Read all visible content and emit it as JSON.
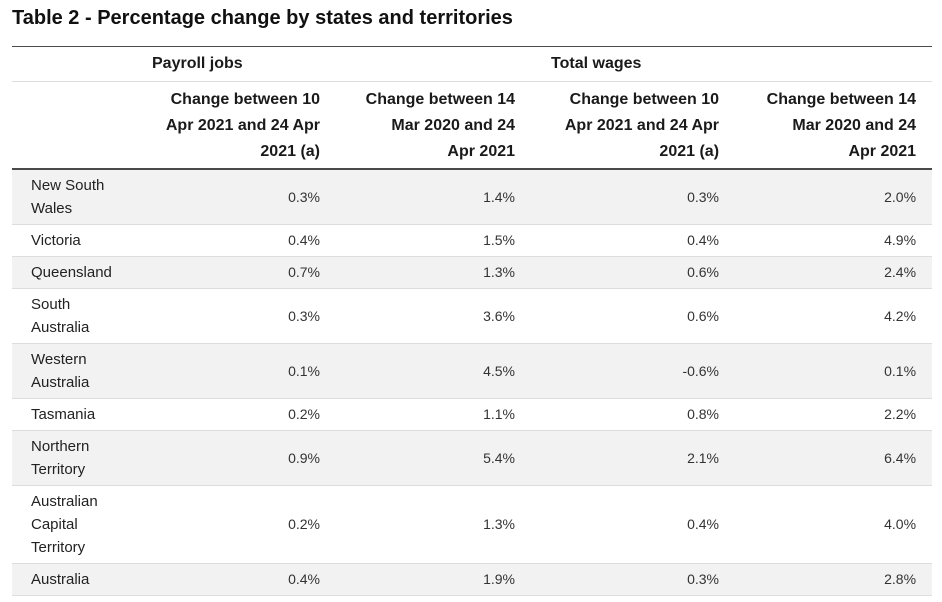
{
  "title": "Table 2 - Percentage change by states and territories",
  "table": {
    "group_headers": {
      "payroll": "Payroll jobs",
      "wages": "Total wages"
    },
    "column_headers": [
      "Change between 10 Apr 2021 and 24 Apr 2021 (a)",
      "Change between 14 Mar 2020 and 24 Apr 2021",
      "Change between 10 Apr 2021 and 24 Apr 2021 (a)",
      "Change between 14 Mar 2020 and 24 Apr 2021"
    ],
    "rows": [
      {
        "label": "New South Wales",
        "values": [
          "0.3%",
          "1.4%",
          "0.3%",
          "2.0%"
        ]
      },
      {
        "label": "Victoria",
        "values": [
          "0.4%",
          "1.5%",
          "0.4%",
          "4.9%"
        ]
      },
      {
        "label": "Queensland",
        "values": [
          "0.7%",
          "1.3%",
          "0.6%",
          "2.4%"
        ]
      },
      {
        "label": "South Australia",
        "values": [
          "0.3%",
          "3.6%",
          "0.6%",
          "4.2%"
        ]
      },
      {
        "label": "Western Australia",
        "values": [
          "0.1%",
          "4.5%",
          "-0.6%",
          "0.1%"
        ]
      },
      {
        "label": "Tasmania",
        "values": [
          "0.2%",
          "1.1%",
          "0.8%",
          "2.2%"
        ]
      },
      {
        "label": "Northern Territory",
        "values": [
          "0.9%",
          "5.4%",
          "2.1%",
          "6.4%"
        ]
      },
      {
        "label": "Australian Capital Territory",
        "values": [
          "0.2%",
          "1.3%",
          "0.4%",
          "4.0%"
        ]
      },
      {
        "label": "Australia",
        "values": [
          "0.4%",
          "1.9%",
          "0.3%",
          "2.8%"
        ]
      }
    ]
  },
  "colors": {
    "shaded_row": "#f2f2f2",
    "rule": "#4a4a4a",
    "row_divider": "#dddddd"
  }
}
